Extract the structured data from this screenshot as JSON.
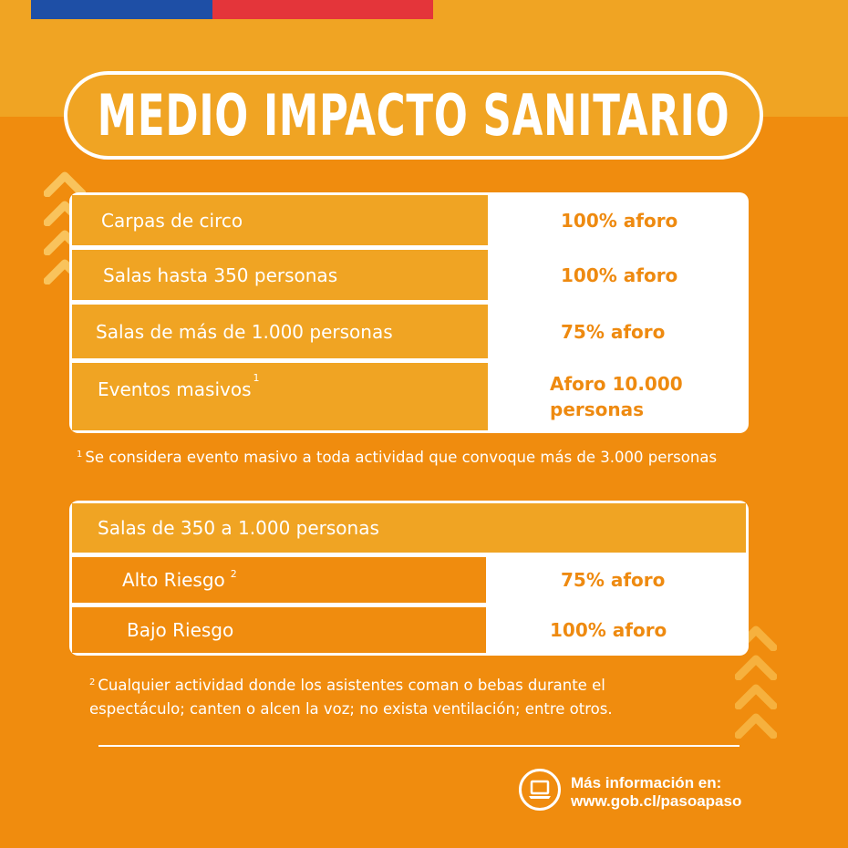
{
  "title": "MEDIO IMPACTO SANITARIO",
  "colors": {
    "background": "#F08C0E",
    "band": "#F0A423",
    "value_text": "#EE8A10",
    "flag_blue": "#1E4FA6",
    "flag_red": "#E4353A"
  },
  "table1": {
    "rows": [
      {
        "label": "Carpas de circo",
        "value": "100% aforo"
      },
      {
        "label": "Salas hasta 350 personas",
        "value": "100% aforo"
      },
      {
        "label": "Salas de más de 1.000 personas",
        "value": "75% aforo"
      },
      {
        "label": "Eventos masivos",
        "label_sup": "1",
        "value_line1": "Aforo 10.000",
        "value_line2": "personas"
      }
    ]
  },
  "footnote1": {
    "marker": "1",
    "text": "Se considera evento masivo a toda actividad que convoque más de 3.000 personas"
  },
  "table2": {
    "header": "Salas de 350 a 1.000 personas",
    "rows": [
      {
        "label": "Alto Riesgo",
        "label_sup": "2",
        "value": "75% aforo"
      },
      {
        "label": "Bajo Riesgo",
        "value": "100% aforo"
      }
    ]
  },
  "footnote2": {
    "marker": "2",
    "line1": "Cualquier actividad donde los asistentes coman o bebas durante el",
    "line2": "espectáculo; canten o alcen la voz; no exista ventilación; entre otros."
  },
  "info": {
    "icon": "laptop-icon",
    "line1": "Más información en:",
    "line2": "www.gob.cl/pasoapaso"
  }
}
